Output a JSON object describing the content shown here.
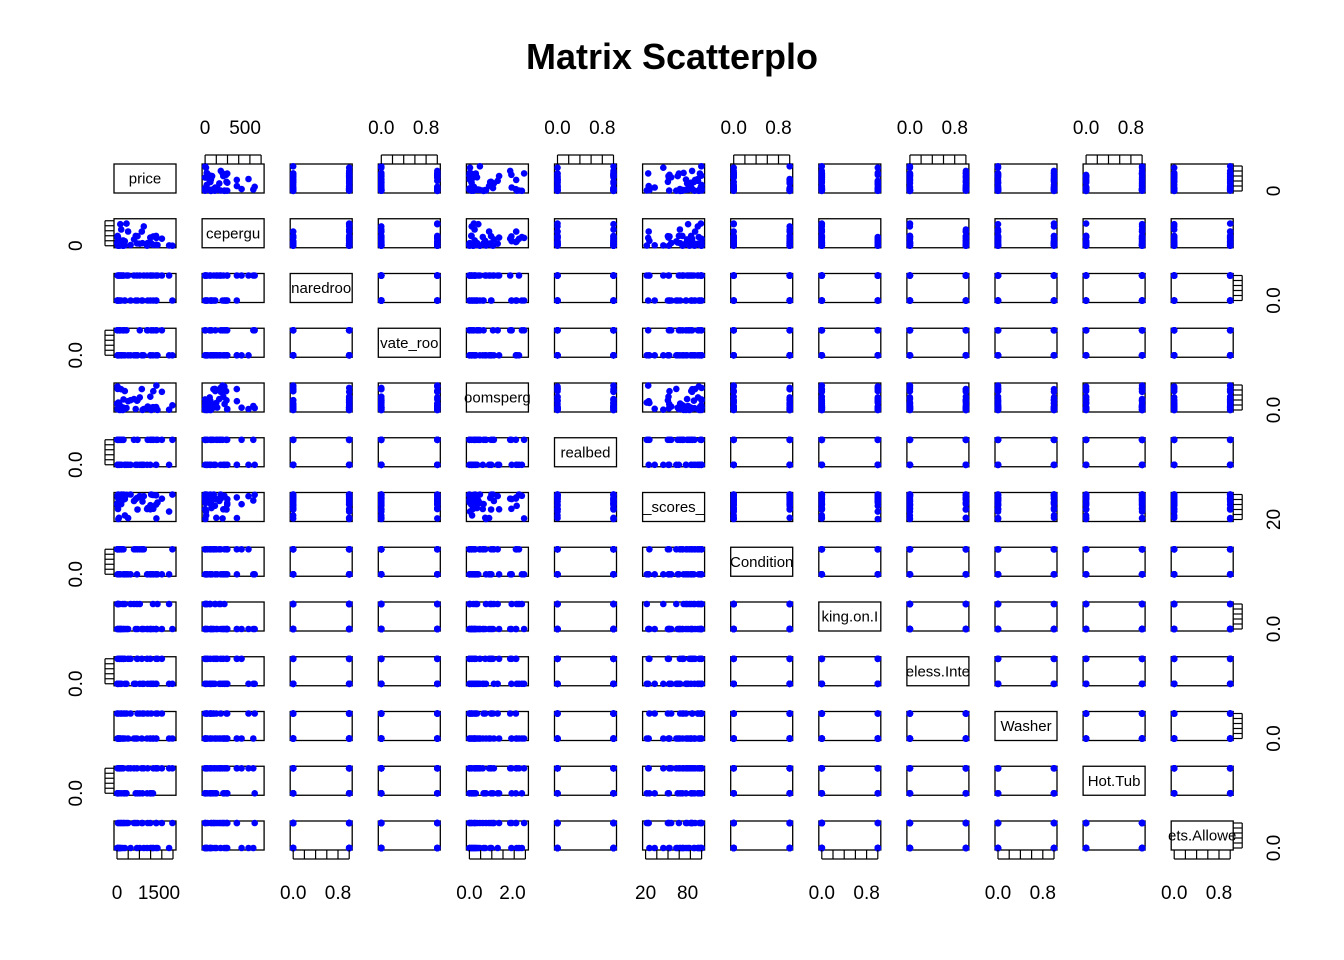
{
  "chart": {
    "title": "Matrix Scatterplo"
  },
  "chart_data": {
    "type": "scatter",
    "variant": "scatterplot-matrix",
    "title": "Matrix Scatterplo",
    "point_color": "#0000ff",
    "variables": [
      {
        "label": "price",
        "min": 0,
        "max": 2000,
        "kind": "skew"
      },
      {
        "label": "cepergu",
        "min": 0,
        "max": 700,
        "kind": "skew"
      },
      {
        "label": "naredroo",
        "min": 0,
        "max": 1,
        "kind": "binary"
      },
      {
        "label": "vate_roo",
        "min": 0,
        "max": 1,
        "kind": "binary"
      },
      {
        "label": "oomsperg",
        "min": 0,
        "max": 2.6,
        "kind": "skew"
      },
      {
        "label": "realbed",
        "min": 0,
        "max": 1,
        "kind": "binary"
      },
      {
        "label": "_scores_",
        "min": 20,
        "max": 100,
        "kind": "left"
      },
      {
        "label": "Condition",
        "min": 0,
        "max": 1,
        "kind": "binary"
      },
      {
        "label": "king.on.I",
        "min": 0,
        "max": 1,
        "kind": "binary"
      },
      {
        "label": "eless.Inte",
        "min": 0,
        "max": 1,
        "kind": "binary"
      },
      {
        "label": "Washer",
        "min": 0,
        "max": 1,
        "kind": "binary"
      },
      {
        "label": "Hot.Tub",
        "min": 0,
        "max": 1,
        "kind": "binary"
      },
      {
        "label": "ets.Allowe",
        "min": 0,
        "max": 1,
        "kind": "binary"
      }
    ],
    "axis_labels": {
      "top": [
        {
          "col": 1,
          "ticks": [
            {
              "value": 0,
              "label": "0"
            },
            {
              "value": 500,
              "label": "500"
            }
          ]
        },
        {
          "col": 3,
          "ticks": [
            {
              "value": 0,
              "label": "0.0"
            },
            {
              "value": 0.8,
              "label": "0.8"
            }
          ]
        },
        {
          "col": 5,
          "ticks": [
            {
              "value": 0,
              "label": "0.0"
            },
            {
              "value": 0.8,
              "label": "0.8"
            }
          ]
        },
        {
          "col": 7,
          "ticks": [
            {
              "value": 0,
              "label": "0.0"
            },
            {
              "value": 0.8,
              "label": "0.8"
            }
          ]
        },
        {
          "col": 9,
          "ticks": [
            {
              "value": 0,
              "label": "0.0"
            },
            {
              "value": 0.8,
              "label": "0.8"
            }
          ]
        },
        {
          "col": 11,
          "ticks": [
            {
              "value": 0,
              "label": "0.0"
            },
            {
              "value": 0.8,
              "label": "0.8"
            }
          ]
        }
      ],
      "bottom": [
        {
          "col": 0,
          "ticks": [
            {
              "value": 0,
              "label": "0"
            },
            {
              "value": 1500,
              "label": "1500"
            }
          ]
        },
        {
          "col": 2,
          "ticks": [
            {
              "value": 0,
              "label": "0.0"
            },
            {
              "value": 0.8,
              "label": "0.8"
            }
          ]
        },
        {
          "col": 4,
          "ticks": [
            {
              "value": 0,
              "label": "0.0"
            },
            {
              "value": 2.0,
              "label": "2.0"
            }
          ]
        },
        {
          "col": 6,
          "ticks": [
            {
              "value": 20,
              "label": "20"
            },
            {
              "value": 80,
              "label": "80"
            }
          ]
        },
        {
          "col": 8,
          "ticks": [
            {
              "value": 0,
              "label": "0.0"
            },
            {
              "value": 0.8,
              "label": "0.8"
            }
          ]
        },
        {
          "col": 10,
          "ticks": [
            {
              "value": 0,
              "label": "0.0"
            },
            {
              "value": 0.8,
              "label": "0.8"
            }
          ]
        },
        {
          "col": 12,
          "ticks": [
            {
              "value": 0,
              "label": "0.0"
            },
            {
              "value": 0.8,
              "label": "0.8"
            }
          ]
        }
      ],
      "left": [
        {
          "row": 1,
          "ticks": [
            {
              "value": 0,
              "label": "0"
            }
          ]
        },
        {
          "row": 3,
          "ticks": [
            {
              "value": 0,
              "label": "0.0"
            }
          ]
        },
        {
          "row": 5,
          "ticks": [
            {
              "value": 0,
              "label": "0.0"
            }
          ]
        },
        {
          "row": 7,
          "ticks": [
            {
              "value": 0,
              "label": "0.0"
            }
          ]
        },
        {
          "row": 9,
          "ticks": [
            {
              "value": 0,
              "label": "0.0"
            }
          ]
        },
        {
          "row": 11,
          "ticks": [
            {
              "value": 0,
              "label": "0.0"
            }
          ]
        }
      ],
      "right": [
        {
          "row": 0,
          "ticks": [
            {
              "value": 0,
              "label": "0"
            }
          ]
        },
        {
          "row": 2,
          "ticks": [
            {
              "value": 0,
              "label": "0.0"
            }
          ]
        },
        {
          "row": 4,
          "ticks": [
            {
              "value": 0,
              "label": "0.0"
            }
          ]
        },
        {
          "row": 6,
          "ticks": [
            {
              "value": 20,
              "label": "20"
            }
          ]
        },
        {
          "row": 8,
          "ticks": [
            {
              "value": 0,
              "label": "0.0"
            }
          ]
        },
        {
          "row": 10,
          "ticks": [
            {
              "value": 0,
              "label": "0.0"
            }
          ]
        },
        {
          "row": 12,
          "ticks": [
            {
              "value": 0,
              "label": "0.0"
            }
          ]
        }
      ]
    },
    "grid": false,
    "legend": "none"
  }
}
